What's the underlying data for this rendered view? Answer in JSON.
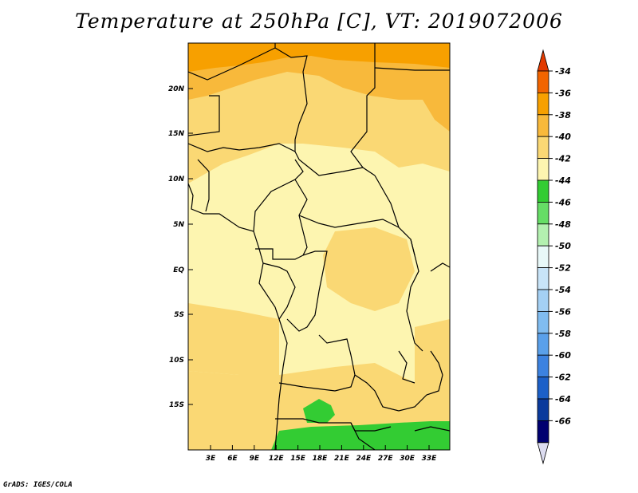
{
  "title": "Temperature at 250hPa [C], VT: 2019072006",
  "credit": "GrADS: IGES/COLA",
  "map": {
    "lat_labels": [
      "20N",
      "15N",
      "10N",
      "5N",
      "EQ",
      "5S",
      "10S",
      "15S"
    ],
    "lon_labels": [
      "3E",
      "6E",
      "9E",
      "12E",
      "15E",
      "18E",
      "21E",
      "24E",
      "27E",
      "30E",
      "33E"
    ]
  },
  "colorbar": {
    "labels": [
      "-34",
      "-36",
      "-38",
      "-40",
      "-42",
      "-44",
      "-46",
      "-48",
      "-50",
      "-52",
      "-54",
      "-56",
      "-58",
      "-60",
      "-62",
      "-64",
      "-66"
    ],
    "colors": [
      "#e23a00",
      "#f26500",
      "#f7a000",
      "#f8b93b",
      "#fad874",
      "#fdf5b0",
      "#33cc33",
      "#66dd66",
      "#b3f0b0",
      "#e8f8f8",
      "#c8e4f8",
      "#a4d0f4",
      "#80bcf0",
      "#5aa0ea",
      "#3c82e0",
      "#1c60c8",
      "#0a3a9c",
      "#000070",
      "#dcdcf0"
    ]
  },
  "chart_data": {
    "type": "heatmap",
    "title": "Temperature at 250hPa [C], VT: 2019072006",
    "levels": [
      -34,
      -36,
      -38,
      -40,
      -42,
      -44,
      -46,
      -48,
      -50,
      -52,
      -54,
      -56,
      -58,
      -60,
      -62,
      -64,
      -66
    ],
    "lat_ticks": [
      "20N",
      "15N",
      "10N",
      "5N",
      "EQ",
      "5S",
      "10S",
      "15S"
    ],
    "lon_ticks": [
      "3E",
      "6E",
      "9E",
      "12E",
      "15E",
      "18E",
      "21E",
      "24E",
      "27E",
      "30E",
      "33E"
    ]
  }
}
